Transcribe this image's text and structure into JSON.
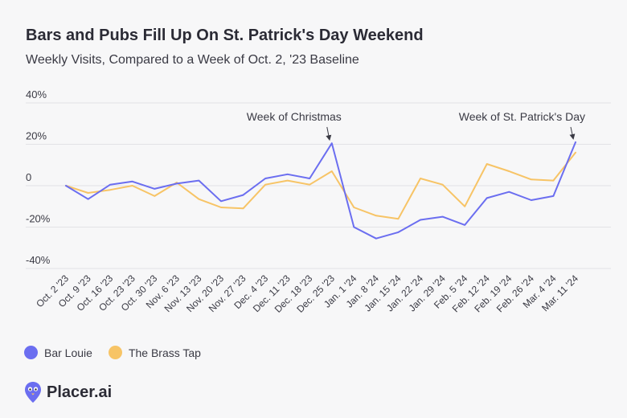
{
  "header": {
    "title": "Bars and Pubs Fill Up On St. Patrick's Day Weekend",
    "subtitle": "Weekly Visits, Compared to a Week of Oct. 2, '23 Baseline"
  },
  "brand": {
    "name": "Placer.ai",
    "icon": "placer-pin-icon",
    "color": "#6b6ef0"
  },
  "chart_data": {
    "type": "line",
    "title": "Bars and Pubs Fill Up On St. Patrick's Day Weekend",
    "subtitle": "Weekly Visits, Compared to a Week of Oct. 2, '23 Baseline",
    "xlabel": "",
    "ylabel": "",
    "ylim": [
      -40,
      40
    ],
    "yticks": [
      40,
      20,
      0,
      -20,
      -40
    ],
    "ytick_labels": [
      "40%",
      "20%",
      "0",
      "-20%",
      "-40%"
    ],
    "grid": true,
    "legend_position": "bottom-left",
    "categories": [
      "Oct. 2 '23",
      "Oct. 9 '23",
      "Oct. 16 '23",
      "Oct. 23 '23",
      "Oct. 30 '23",
      "Nov. 6 '23",
      "Nov. 13 '23",
      "Nov. 20 '23",
      "Nov. 27 '23",
      "Dec. 4 '23",
      "Dec. 11 '23",
      "Dec. 18 '23",
      "Dec. 25 '23",
      "Jan. 1 '24",
      "Jan. 8 '24",
      "Jan. 15 '24",
      "Jan. 22 '24",
      "Jan. 29 '24",
      "Feb. 5 '24",
      "Feb. 12 '24",
      "Feb. 19 '24",
      "Feb. 26 '24",
      "Mar. 4 '24",
      "Mar. 11 '24"
    ],
    "series": [
      {
        "name": "Bar Louie",
        "color": "#6b6ef0",
        "values": [
          0,
          -6.5,
          0.5,
          2,
          -1.5,
          1,
          2.5,
          -7.5,
          -4.5,
          3.5,
          5.5,
          3.5,
          20.5,
          -20,
          -25.5,
          -22.5,
          -16.5,
          -15,
          -19,
          -6,
          -3,
          -7,
          -5,
          21
        ]
      },
      {
        "name": "The Brass Tap",
        "color": "#f7c466",
        "values": [
          0,
          -3.5,
          -2,
          0,
          -5,
          1.5,
          -6.5,
          -10.5,
          -11,
          0.5,
          2.5,
          0.5,
          7,
          -10.5,
          -14.5,
          -16,
          3.5,
          0.5,
          -10,
          10.5,
          7,
          3,
          2.5,
          16
        ]
      }
    ],
    "annotations": [
      {
        "text": "Week of Christmas",
        "category": "Dec. 25 '23",
        "series": "Bar Louie"
      },
      {
        "text": "Week of St. Patrick's Day",
        "category": "Mar. 11 '24",
        "series": "Bar Louie"
      }
    ]
  }
}
